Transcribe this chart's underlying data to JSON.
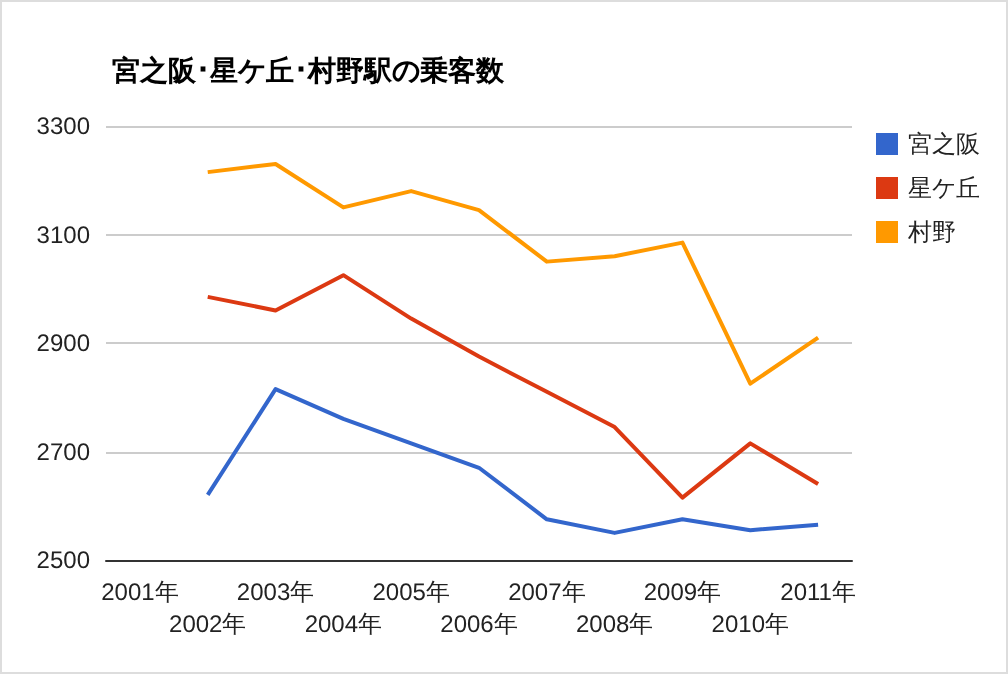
{
  "chart_data": {
    "type": "line",
    "title": "宮之阪･星ケ丘･村野駅の乗客数",
    "categories": [
      "2001年",
      "2002年",
      "2003年",
      "2004年",
      "2005年",
      "2006年",
      "2007年",
      "2008年",
      "2009年",
      "2010年",
      "2011年"
    ],
    "series": [
      {
        "name": "宮之阪",
        "color": "#3366cc",
        "values": [
          null,
          2620,
          2815,
          2760,
          2715,
          2670,
          2575,
          2550,
          2575,
          2555,
          2565
        ]
      },
      {
        "name": "星ケ丘",
        "color": "#dc3912",
        "values": [
          null,
          2985,
          2960,
          3025,
          2945,
          2875,
          2810,
          2745,
          2615,
          2715,
          2640
        ]
      },
      {
        "name": "村野",
        "color": "#ff9900",
        "values": [
          null,
          3215,
          3230,
          3150,
          3180,
          3145,
          3050,
          3060,
          3085,
          2825,
          2910
        ]
      }
    ],
    "ylim": [
      2500,
      3300
    ],
    "yticks": [
      2500,
      2700,
      2900,
      3100,
      3300
    ],
    "grid": "y",
    "legend": "right",
    "marker": "none"
  }
}
